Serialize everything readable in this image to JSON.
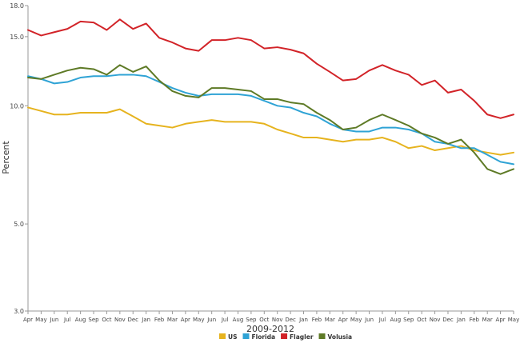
{
  "chart_data": {
    "type": "line",
    "xlabel": "2009-2012",
    "ylabel": "Percent",
    "ylim": [
      3.0,
      18.0
    ],
    "yticks": [
      {
        "value": 3.0,
        "label": "3.0"
      },
      {
        "value": 5.0,
        "label": "5.0"
      },
      {
        "value": 10.0,
        "label": "10.0"
      },
      {
        "value": 15.0,
        "label": "15.0"
      },
      {
        "value": 18.0,
        "label": "18.0"
      }
    ],
    "grid": false,
    "legend_position": "bottom",
    "categories": [
      "Apr",
      "May",
      "Jun",
      "Jul",
      "Aug",
      "Sep",
      "Oct",
      "Nov",
      "Dec",
      "Jan",
      "Feb",
      "Mar",
      "Apr",
      "May",
      "Jun",
      "Jul",
      "Aug",
      "Sep",
      "Oct",
      "Nov",
      "Dec",
      "Jan",
      "Feb",
      "Mar",
      "Apr",
      "May",
      "Jun",
      "Jul",
      "Aug",
      "Sep",
      "Oct",
      "Nov",
      "Dec",
      "Jan",
      "Feb",
      "Mar",
      "Apr",
      "May"
    ],
    "series": [
      {
        "name": "US",
        "color": "#e6b31e",
        "values": [
          9.9,
          9.7,
          9.5,
          9.5,
          9.6,
          9.6,
          9.6,
          9.8,
          9.4,
          9.0,
          8.9,
          8.8,
          9.0,
          9.1,
          9.2,
          9.1,
          9.1,
          9.1,
          9.0,
          8.7,
          8.5,
          8.3,
          8.3,
          8.2,
          8.1,
          8.2,
          8.2,
          8.3,
          8.1,
          7.8,
          7.9,
          7.7,
          7.8,
          7.9,
          7.7,
          7.6,
          7.5,
          7.6
        ]
      },
      {
        "name": "Florida",
        "color": "#2fa3d5",
        "values": [
          11.9,
          11.7,
          11.4,
          11.5,
          11.8,
          11.9,
          11.9,
          12.0,
          12.0,
          11.9,
          11.5,
          11.1,
          10.8,
          10.6,
          10.7,
          10.7,
          10.7,
          10.6,
          10.3,
          10.0,
          9.9,
          9.6,
          9.4,
          9.0,
          8.7,
          8.6,
          8.6,
          8.8,
          8.8,
          8.7,
          8.5,
          8.1,
          8.0,
          7.8,
          7.8,
          7.5,
          7.2,
          7.1
        ]
      },
      {
        "name": "Flagler",
        "color": "#d22328",
        "values": [
          15.6,
          15.1,
          15.4,
          15.7,
          16.4,
          16.3,
          15.6,
          16.6,
          15.7,
          16.2,
          14.9,
          14.5,
          14.0,
          13.8,
          14.7,
          14.7,
          14.9,
          14.7,
          14.0,
          14.1,
          13.9,
          13.6,
          12.8,
          12.2,
          11.6,
          11.7,
          12.3,
          12.7,
          12.3,
          12.0,
          11.3,
          11.6,
          10.8,
          11.0,
          10.3,
          9.5,
          9.3,
          9.5
        ]
      },
      {
        "name": "Volusia",
        "color": "#5e7a26",
        "values": [
          11.8,
          11.7,
          12.0,
          12.3,
          12.5,
          12.4,
          12.0,
          12.7,
          12.2,
          12.6,
          11.6,
          10.9,
          10.6,
          10.5,
          11.1,
          11.1,
          11.0,
          10.9,
          10.4,
          10.4,
          10.2,
          10.1,
          9.6,
          9.2,
          8.7,
          8.8,
          9.2,
          9.5,
          9.2,
          8.9,
          8.5,
          8.3,
          8.0,
          8.2,
          7.6,
          6.9,
          6.7,
          6.9
        ]
      }
    ]
  }
}
